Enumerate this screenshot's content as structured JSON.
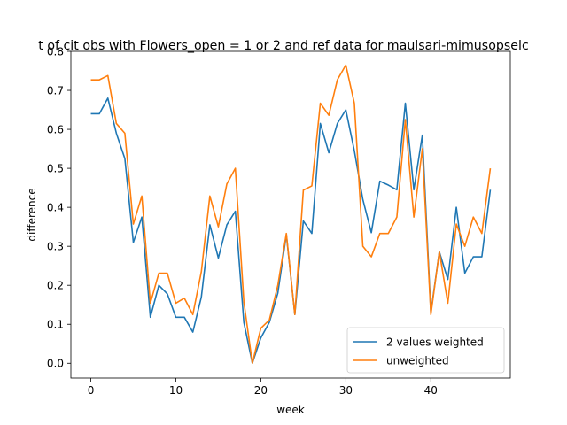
{
  "chart_data": {
    "type": "line",
    "title": "t of cit obs with Flowers_open = 1 or 2 and ref data for maulsari-mimusopselc",
    "xlabel": "week",
    "ylabel": "difference",
    "xlim": [
      -2.35,
      49.35
    ],
    "ylim": [
      -0.038,
      0.8
    ],
    "xticks": [
      0,
      10,
      20,
      30,
      40
    ],
    "yticks": [
      0.0,
      0.1,
      0.2,
      0.3,
      0.4,
      0.5,
      0.6,
      0.7,
      0.8
    ],
    "xtick_labels": [
      "0",
      "10",
      "20",
      "30",
      "40"
    ],
    "ytick_labels": [
      "0.0",
      "0.1",
      "0.2",
      "0.3",
      "0.4",
      "0.5",
      "0.6",
      "0.7",
      "0.8"
    ],
    "grid": false,
    "legend_position": "lower-right",
    "x": [
      0,
      1,
      2,
      3,
      4,
      5,
      6,
      7,
      8,
      9,
      10,
      11,
      12,
      13,
      14,
      15,
      16,
      17,
      18,
      19,
      20,
      21,
      22,
      23,
      24,
      25,
      26,
      27,
      28,
      29,
      30,
      31,
      32,
      33,
      34,
      35,
      36,
      37,
      38,
      39,
      40,
      41,
      42,
      43,
      44,
      45,
      46,
      47
    ],
    "series": [
      {
        "name": "2 values weighted",
        "color": "#1f77b4",
        "values": [
          0.64,
          0.64,
          0.68,
          0.59,
          0.525,
          0.31,
          0.375,
          0.118,
          0.2,
          0.178,
          0.118,
          0.118,
          0.08,
          0.17,
          0.355,
          0.27,
          0.355,
          0.39,
          0.105,
          0.0,
          0.065,
          0.105,
          0.18,
          0.33,
          0.125,
          0.365,
          0.333,
          0.615,
          0.54,
          0.615,
          0.65,
          0.545,
          0.42,
          0.335,
          0.467,
          0.457,
          0.445,
          0.667,
          0.445,
          0.585,
          0.13,
          0.286,
          0.215,
          0.4,
          0.231,
          0.273,
          0.273,
          0.445
        ]
      },
      {
        "name": "unweighted",
        "color": "#ff7f0e",
        "values": [
          0.727,
          0.727,
          0.738,
          0.615,
          0.59,
          0.357,
          0.429,
          0.154,
          0.231,
          0.231,
          0.154,
          0.167,
          0.125,
          0.235,
          0.429,
          0.35,
          0.46,
          0.5,
          0.158,
          0.0,
          0.09,
          0.111,
          0.2,
          0.333,
          0.125,
          0.444,
          0.455,
          0.667,
          0.636,
          0.727,
          0.765,
          0.667,
          0.3,
          0.273,
          0.333,
          0.333,
          0.375,
          0.625,
          0.375,
          0.55,
          0.125,
          0.286,
          0.154,
          0.357,
          0.3,
          0.375,
          0.333,
          0.5
        ]
      }
    ]
  }
}
